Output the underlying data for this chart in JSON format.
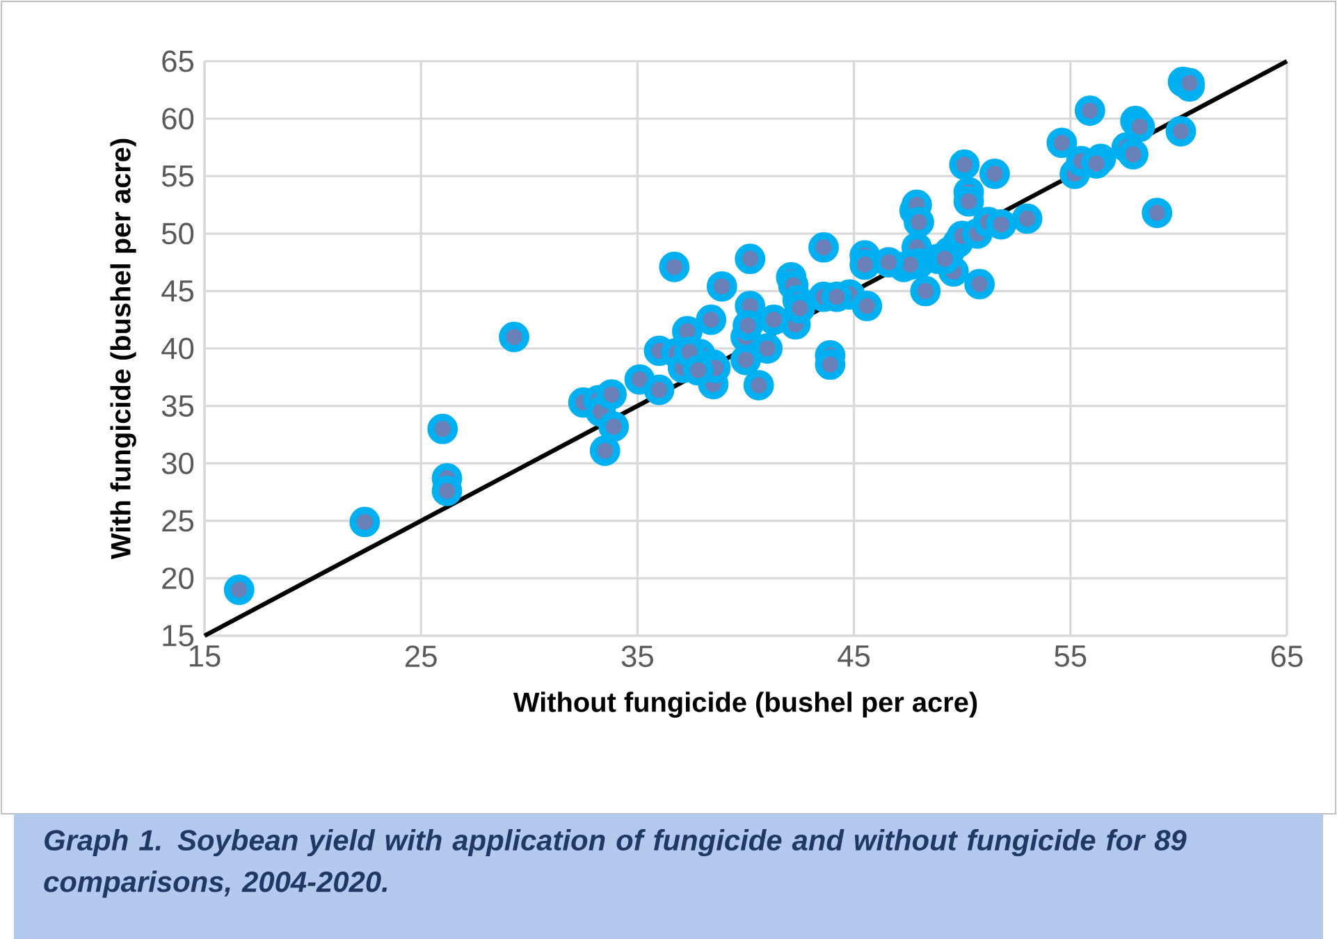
{
  "chart_data": {
    "type": "scatter",
    "xlabel": "Without fungicide (bushel per acre)",
    "ylabel": "With fungicide (bushel per acre)",
    "annotations": [
      "Graph 1. Soybean yield with application of fungicide and without fungicide for 89 comparisons, 2004-2020."
    ],
    "xlim": [
      15,
      65
    ],
    "xticks": [
      15,
      25,
      35,
      45,
      55,
      65
    ],
    "ylim": [
      15,
      65
    ],
    "yticks": [
      15,
      20,
      25,
      30,
      35,
      40,
      45,
      50,
      55,
      60,
      65
    ],
    "grid": true,
    "marker": "circle",
    "series": [
      {
        "color": "#00b0f0",
        "x": [
          16.6,
          22.4,
          26,
          26.2,
          26.2,
          29.3,
          32.5,
          33.2,
          33.3,
          33.8,
          33.9,
          33.5,
          35.1,
          36,
          36,
          36.7,
          36.8,
          37.3,
          37.1,
          37.9,
          38.4,
          38.5,
          38.5,
          38.9,
          40,
          40,
          40.2,
          40.2,
          40.1,
          40.6,
          41,
          42.1,
          42.2,
          42.4,
          42.3,
          43.6,
          43.6,
          43.9,
          43.9,
          44.8,
          45.5,
          45.5,
          45.6,
          47.3,
          47.8,
          47.9,
          47.9,
          48,
          48,
          48.3,
          48.9,
          49.4,
          49.6,
          49.8,
          50,
          50.1,
          50.3,
          50.3,
          50.7,
          50.8,
          51.2,
          51.5,
          51.8,
          53,
          54.6,
          55.2,
          55.5,
          55.9,
          56.4,
          57.6,
          57.9,
          58,
          58.2,
          59,
          60.1,
          60.2,
          60.5,
          60.5,
          47.6,
          41.3,
          37.4,
          46.6,
          38.6,
          44.2,
          49.2,
          37.8,
          42.5,
          56.2
        ],
        "values": [
          19,
          24.9,
          33,
          28.7,
          27.6,
          41,
          35.3,
          35.5,
          34.5,
          36,
          33.2,
          31.1,
          37.3,
          39.8,
          36.4,
          47.1,
          39.6,
          41.5,
          38.3,
          39.5,
          42.5,
          36.9,
          38.6,
          45.4,
          41,
          39,
          47.8,
          43.7,
          42,
          36.8,
          40,
          46.2,
          45.5,
          44.2,
          42.1,
          48.8,
          44.5,
          39.4,
          38.6,
          44.7,
          48.1,
          47.3,
          43.7,
          47.1,
          52,
          52.5,
          48.8,
          51,
          47.4,
          45,
          47.8,
          48.4,
          46.7,
          49.2,
          49.8,
          56,
          53.6,
          52.8,
          50,
          45.6,
          51,
          55.2,
          50.8,
          51.3,
          57.9,
          55.2,
          56.3,
          60.7,
          56.5,
          57.5,
          56.9,
          59.8,
          59.3,
          51.8,
          58.9,
          63.2,
          62.8,
          63.1,
          47.3,
          42.5,
          39.7,
          47.5,
          38.3,
          44.5,
          47.8,
          38.1,
          43.5,
          56.1
        ]
      },
      {
        "type": "line",
        "color": "#000000",
        "marker": "none",
        "line_style": "solid",
        "x": [
          15,
          65
        ],
        "values": [
          15,
          65
        ]
      }
    ]
  }
}
